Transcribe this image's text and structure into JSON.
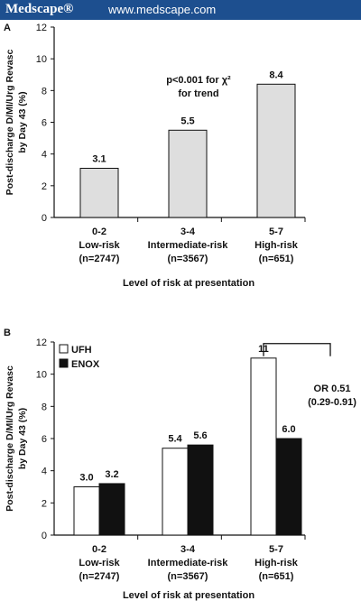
{
  "banner": {
    "brand": "Medscape®",
    "url": "www.medscape.com"
  },
  "chart_data": [
    {
      "panel": "A",
      "type": "bar",
      "categories": [
        "0-2",
        "3-4",
        "5-7"
      ],
      "category_labels": [
        [
          "0-2",
          "Low-risk",
          "(n=2747)"
        ],
        [
          "3-4",
          "Intermediate-risk",
          "(n=3567)"
        ],
        [
          "5-7",
          "High-risk",
          "(n=651)"
        ]
      ],
      "series": [
        {
          "values": [
            3.1,
            5.5,
            8.4
          ],
          "color": "#dedede"
        }
      ],
      "data_labels": [
        "3.1",
        "5.5",
        "8.4"
      ],
      "annotation": [
        "p<0.001 for χ²",
        "for trend"
      ],
      "ylabel": [
        "Post-discharge D/MI/Urg Revasc",
        "by Day 43 (%)"
      ],
      "xlabel": "Level of risk at presentation",
      "yticks": [
        "0",
        "2",
        "4",
        "6",
        "8",
        "10",
        "12"
      ],
      "ylim": [
        0,
        12
      ]
    },
    {
      "panel": "B",
      "type": "bar",
      "categories": [
        "0-2",
        "3-4",
        "5-7"
      ],
      "category_labels": [
        [
          "0-2",
          "Low-risk",
          "(n=2747)"
        ],
        [
          "3-4",
          "Intermediate-risk",
          "(n=3567)"
        ],
        [
          "5-7",
          "High-risk",
          "(n=651)"
        ]
      ],
      "series": [
        {
          "name": "UFH",
          "values": [
            3.0,
            5.4,
            11
          ],
          "color": "#ffffff"
        },
        {
          "name": "ENOX",
          "values": [
            3.2,
            5.6,
            6.0
          ],
          "color": "#111111"
        }
      ],
      "data_labels": [
        [
          "3.0",
          "5.4",
          "11"
        ],
        [
          "3.2",
          "5.6",
          "6.0"
        ]
      ],
      "annotation": [
        "OR 0.51",
        "(0.29-0.91)"
      ],
      "ylabel": [
        "Post-discharge D/MI/Urg Revasc",
        "by Day 43 (%)"
      ],
      "xlabel": "Level of risk at presentation",
      "yticks": [
        "0",
        "2",
        "4",
        "6",
        "8",
        "10",
        "12"
      ],
      "ylim": [
        0,
        12
      ],
      "legend": "top-left"
    }
  ]
}
